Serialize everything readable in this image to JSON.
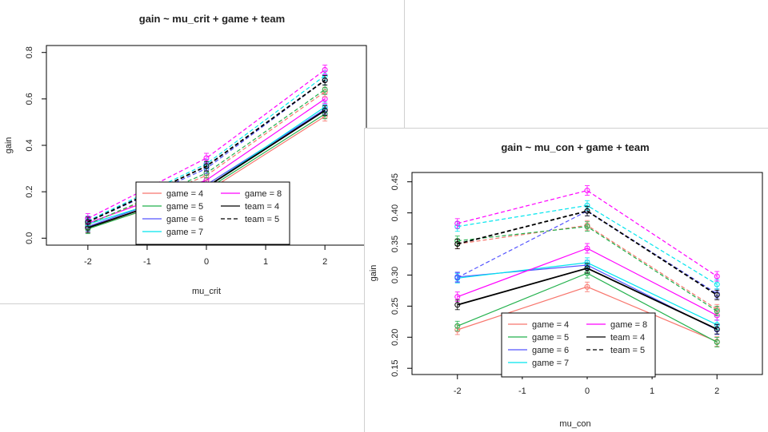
{
  "chart_data": [
    {
      "type": "line",
      "title": "gain ~ mu_crit + game + team",
      "xlabel": "mu_crit",
      "ylabel": "gain",
      "x": [
        -2,
        0,
        2
      ],
      "xticks": [
        "-2",
        "-1",
        "0",
        "1",
        "2"
      ],
      "xlim": [
        -2.7,
        2.7
      ],
      "ylim": [
        -0.03,
        0.83
      ],
      "yticks": [
        "0.0",
        "0.2",
        "0.4",
        "0.6",
        "0.8"
      ],
      "legend_position": "bottom-center",
      "legend": [
        "game = 4",
        "game = 5",
        "game = 6",
        "game = 7",
        "game = 8",
        "team = 4",
        "team = 5"
      ],
      "series": [
        {
          "name": "game = 4",
          "color": "#f8766d",
          "dashed": false,
          "values": [
            0.045,
            0.2,
            0.525
          ]
        },
        {
          "name": "game = 5",
          "color": "#22b14c",
          "dashed": false,
          "values": [
            0.04,
            0.21,
            0.535
          ]
        },
        {
          "name": "game = 6",
          "color": "#5555ff",
          "dashed": false,
          "values": [
            0.05,
            0.23,
            0.555
          ]
        },
        {
          "name": "game = 7",
          "color": "#00e5ee",
          "dashed": false,
          "values": [
            0.06,
            0.22,
            0.565
          ]
        },
        {
          "name": "game = 8",
          "color": "#ff00ff",
          "dashed": false,
          "values": [
            0.065,
            0.25,
            0.6
          ]
        },
        {
          "name": "team = 4",
          "color": "#000000",
          "dashed": false,
          "values": [
            0.045,
            0.22,
            0.55
          ]
        },
        {
          "color": "#f8766d",
          "dashed": true,
          "values": [
            0.06,
            0.27,
            0.63
          ]
        },
        {
          "color": "#22b14c",
          "dashed": true,
          "values": [
            0.06,
            0.28,
            0.64
          ]
        },
        {
          "color": "#5555ff",
          "dashed": true,
          "values": [
            0.07,
            0.3,
            0.68
          ]
        },
        {
          "color": "#00e5ee",
          "dashed": true,
          "values": [
            0.075,
            0.32,
            0.7
          ]
        },
        {
          "color": "#ff00ff",
          "dashed": true,
          "values": [
            0.085,
            0.345,
            0.725
          ]
        },
        {
          "name": "team = 5",
          "color": "#000000",
          "dashed": true,
          "values": [
            0.07,
            0.31,
            0.68
          ]
        }
      ]
    },
    {
      "type": "line",
      "title": "gain ~ mu_con + game + team",
      "xlabel": "mu_con",
      "ylabel": "gain",
      "x": [
        -2,
        0,
        2
      ],
      "xticks": [
        "-2",
        "-1",
        "0",
        "1",
        "2"
      ],
      "xlim": [
        -2.7,
        2.7
      ],
      "ylim": [
        0.14,
        0.465
      ],
      "yticks": [
        "0.15",
        "0.20",
        "0.25",
        "0.30",
        "0.35",
        "0.40",
        "0.45"
      ],
      "legend_position": "bottom-center",
      "legend": [
        "game = 4",
        "game = 5",
        "game = 6",
        "game = 7",
        "game = 8",
        "team = 4",
        "team = 5"
      ],
      "series": [
        {
          "name": "game = 4",
          "color": "#f8766d",
          "dashed": false,
          "values": [
            0.212,
            0.281,
            0.193
          ]
        },
        {
          "name": "game = 5",
          "color": "#22b14c",
          "dashed": false,
          "values": [
            0.218,
            0.303,
            0.192
          ]
        },
        {
          "name": "game = 6",
          "color": "#5555ff",
          "dashed": false,
          "values": [
            0.297,
            0.316,
            0.212
          ]
        },
        {
          "name": "game = 7",
          "color": "#00e5ee",
          "dashed": false,
          "values": [
            0.295,
            0.32,
            0.22
          ]
        },
        {
          "name": "game = 8",
          "color": "#ff00ff",
          "dashed": false,
          "values": [
            0.265,
            0.343,
            0.235
          ]
        },
        {
          "name": "team = 4",
          "color": "#000000",
          "dashed": false,
          "values": [
            0.252,
            0.311,
            0.213
          ]
        },
        {
          "color": "#f8766d",
          "dashed": true,
          "values": [
            0.35,
            0.38,
            0.245
          ]
        },
        {
          "color": "#22b14c",
          "dashed": true,
          "values": [
            0.355,
            0.378,
            0.242
          ]
        },
        {
          "color": "#5555ff",
          "dashed": true,
          "values": [
            0.296,
            0.403,
            0.27
          ]
        },
        {
          "color": "#00e5ee",
          "dashed": true,
          "values": [
            0.378,
            0.412,
            0.285
          ]
        },
        {
          "color": "#ff00ff",
          "dashed": true,
          "values": [
            0.383,
            0.436,
            0.298
          ]
        },
        {
          "name": "team = 5",
          "color": "#000000",
          "dashed": true,
          "values": [
            0.35,
            0.403,
            0.268
          ]
        }
      ]
    }
  ]
}
